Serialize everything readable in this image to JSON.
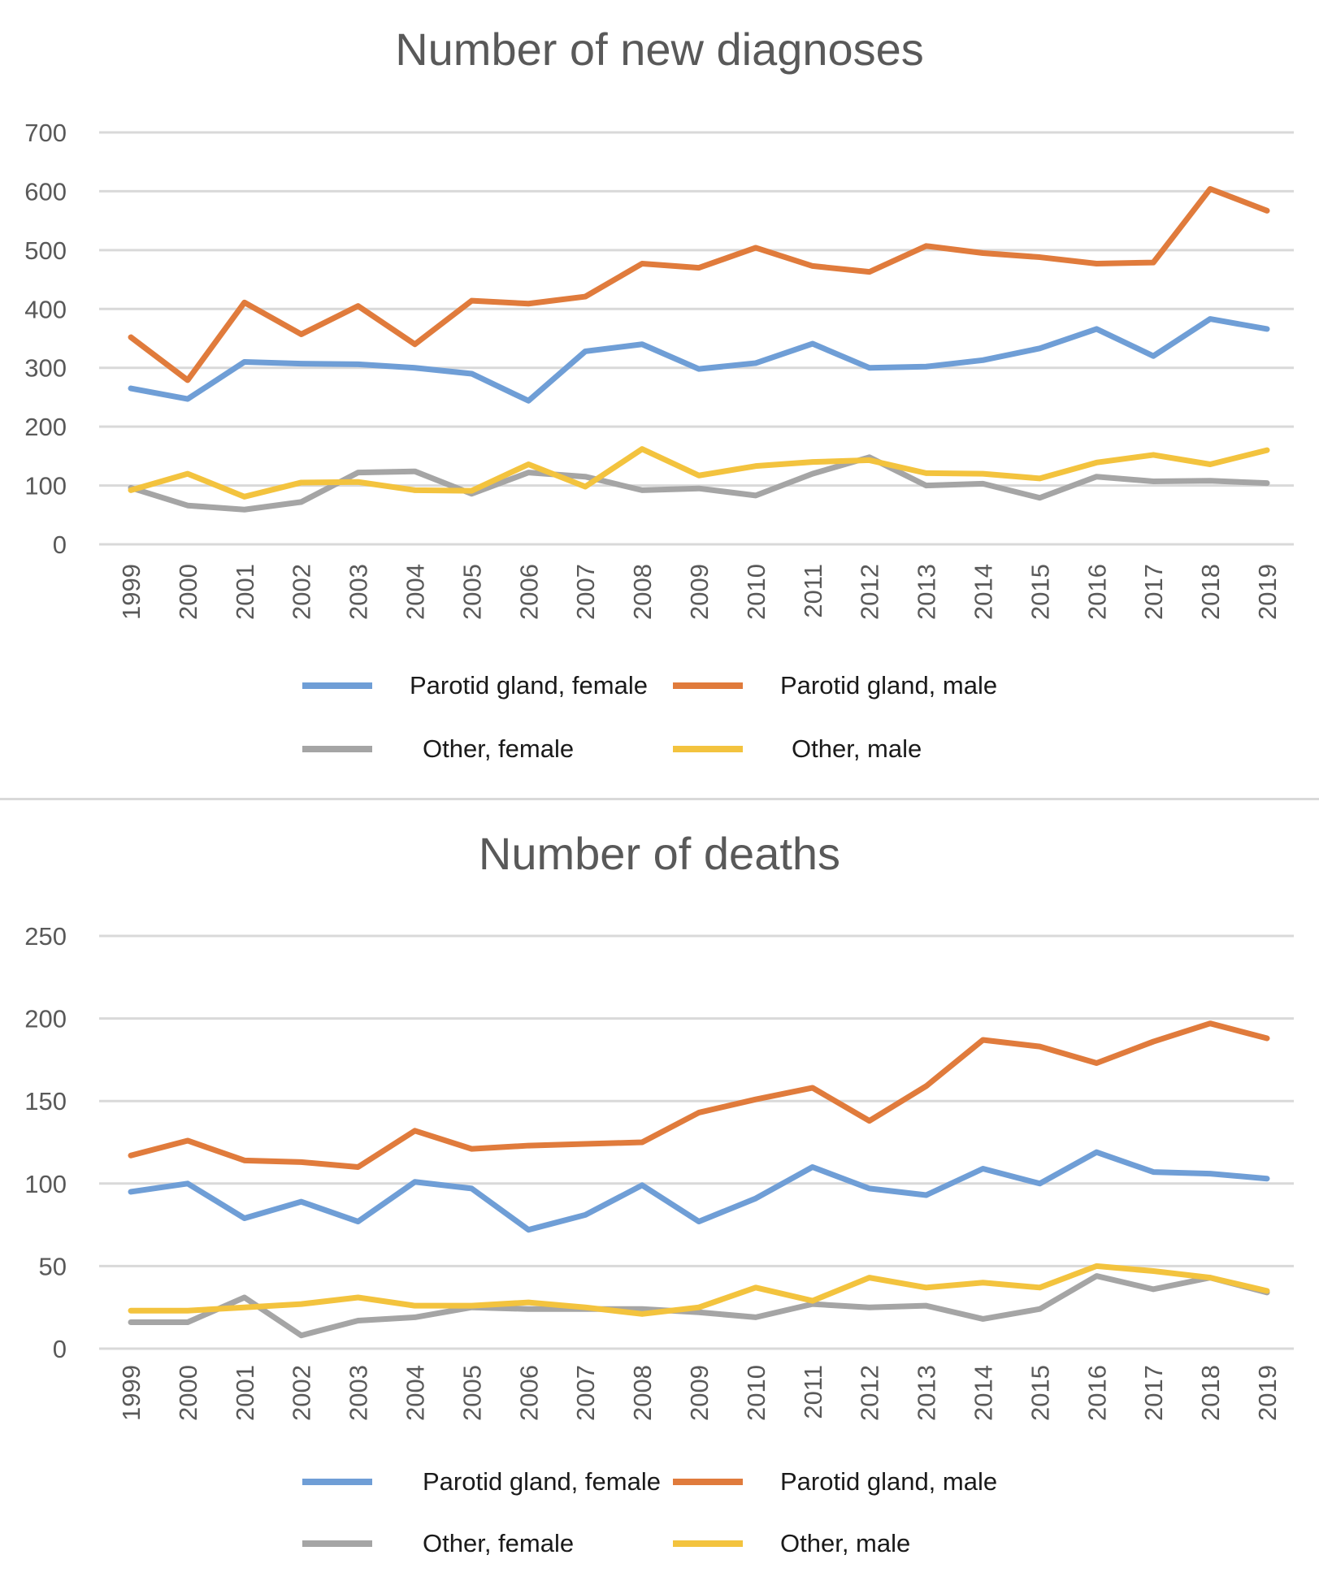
{
  "chart_data": [
    {
      "type": "line",
      "title": "Number of new diagnoses",
      "xlabel": "",
      "ylabel": "",
      "ylim": [
        0,
        700
      ],
      "yticks": [
        0,
        100,
        200,
        300,
        400,
        500,
        600,
        700
      ],
      "grid": true,
      "legend_position": "bottom",
      "categories": [
        "1999",
        "2000",
        "2001",
        "2002",
        "2003",
        "2004",
        "2005",
        "2006",
        "2007",
        "2008",
        "2009",
        "2010",
        "2011",
        "2012",
        "2013",
        "2014",
        "2015",
        "2016",
        "2017",
        "2018",
        "2019"
      ],
      "series": [
        {
          "name": "Parotid gland, female",
          "color": "#6f9ed6",
          "values": [
            265,
            247,
            310,
            307,
            306,
            300,
            290,
            244,
            328,
            340,
            298,
            308,
            341,
            300,
            302,
            313,
            333,
            366,
            320,
            383,
            366
          ]
        },
        {
          "name": "Parotid gland, male",
          "color": "#e07b3c",
          "values": [
            352,
            279,
            411,
            357,
            405,
            340,
            414,
            409,
            421,
            477,
            470,
            504,
            473,
            463,
            507,
            495,
            488,
            477,
            479,
            604,
            567
          ]
        },
        {
          "name": "Other, female",
          "color": "#a5a5a5",
          "values": [
            96,
            66,
            59,
            72,
            122,
            124,
            86,
            122,
            115,
            92,
            95,
            83,
            120,
            148,
            100,
            103,
            79,
            115,
            107,
            108,
            104
          ]
        },
        {
          "name": "Other, male",
          "color": "#f3c33e",
          "values": [
            92,
            120,
            81,
            105,
            106,
            92,
            91,
            136,
            98,
            162,
            117,
            133,
            140,
            143,
            121,
            120,
            112,
            139,
            152,
            136,
            160
          ]
        }
      ]
    },
    {
      "type": "line",
      "title": "Number of deaths",
      "xlabel": "",
      "ylabel": "",
      "ylim": [
        0,
        250
      ],
      "yticks": [
        0,
        50,
        100,
        150,
        200,
        250
      ],
      "grid": true,
      "legend_position": "bottom",
      "categories": [
        "1999",
        "2000",
        "2001",
        "2002",
        "2003",
        "2004",
        "2005",
        "2006",
        "2007",
        "2008",
        "2009",
        "2010",
        "2011",
        "2012",
        "2013",
        "2014",
        "2015",
        "2016",
        "2017",
        "2018",
        "2019"
      ],
      "series": [
        {
          "name": "Parotid gland, female",
          "color": "#6f9ed6",
          "values": [
            95,
            100,
            79,
            89,
            77,
            101,
            97,
            72,
            81,
            99,
            77,
            91,
            110,
            97,
            93,
            109,
            100,
            119,
            107,
            106,
            103
          ]
        },
        {
          "name": "Parotid gland, male",
          "color": "#e07b3c",
          "values": [
            117,
            126,
            114,
            113,
            110,
            132,
            121,
            123,
            124,
            125,
            143,
            151,
            158,
            138,
            159,
            187,
            183,
            173,
            186,
            197,
            188
          ]
        },
        {
          "name": "Other, female",
          "color": "#a5a5a5",
          "values": [
            16,
            16,
            31,
            8,
            17,
            19,
            25,
            24,
            24,
            24,
            22,
            19,
            27,
            25,
            26,
            18,
            24,
            44,
            36,
            43,
            34
          ]
        },
        {
          "name": "Other, male",
          "color": "#f3c33e",
          "values": [
            23,
            23,
            25,
            27,
            31,
            26,
            26,
            28,
            25,
            21,
            25,
            37,
            29,
            43,
            37,
            40,
            37,
            50,
            47,
            43,
            35
          ]
        }
      ]
    }
  ]
}
